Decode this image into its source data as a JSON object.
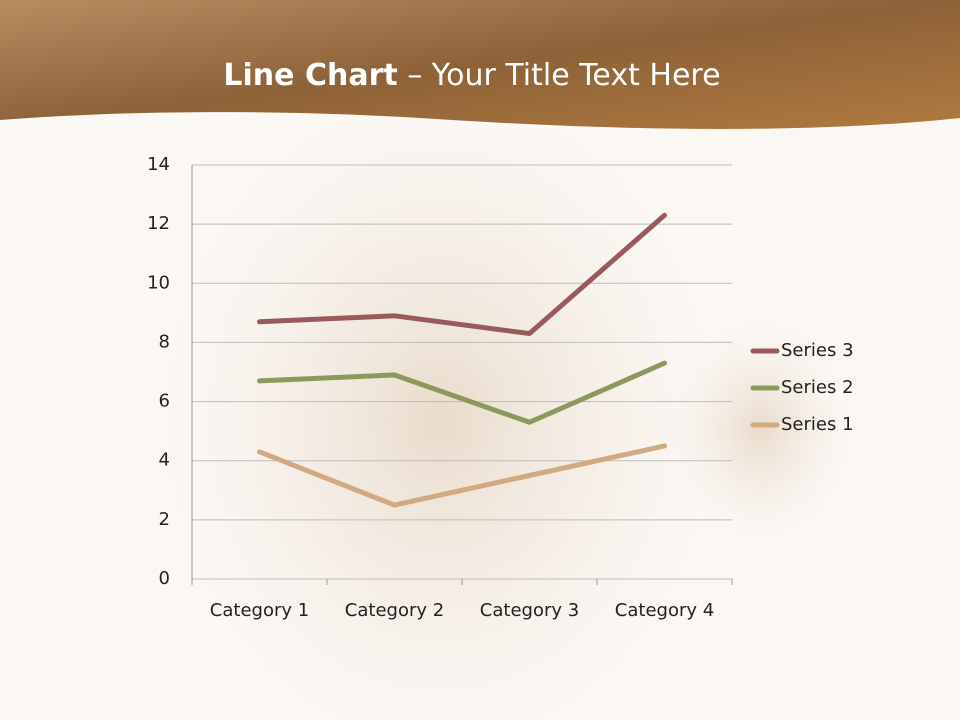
{
  "chart_data": {
    "type": "line",
    "stacked": true,
    "title_bold": "Line Chart",
    "title_rest": "– Your Title Text Here",
    "categories": [
      "Category 1",
      "Category 2",
      "Category 3",
      "Category 4"
    ],
    "series": [
      {
        "name": "Series 1",
        "color": "#d2aa82",
        "values": [
          4.3,
          2.5,
          3.5,
          4.5
        ]
      },
      {
        "name": "Series 2",
        "color": "#8b9a5b",
        "values": [
          2.4,
          4.4,
          1.8,
          2.8
        ]
      },
      {
        "name": "Series 3",
        "color": "#9a5a5a",
        "values": [
          2,
          2,
          3,
          5
        ]
      }
    ],
    "ylim": [
      0,
      14
    ],
    "yticks": [
      0,
      2,
      4,
      6,
      8,
      10,
      12,
      14
    ],
    "grid": true,
    "legend": "right"
  }
}
